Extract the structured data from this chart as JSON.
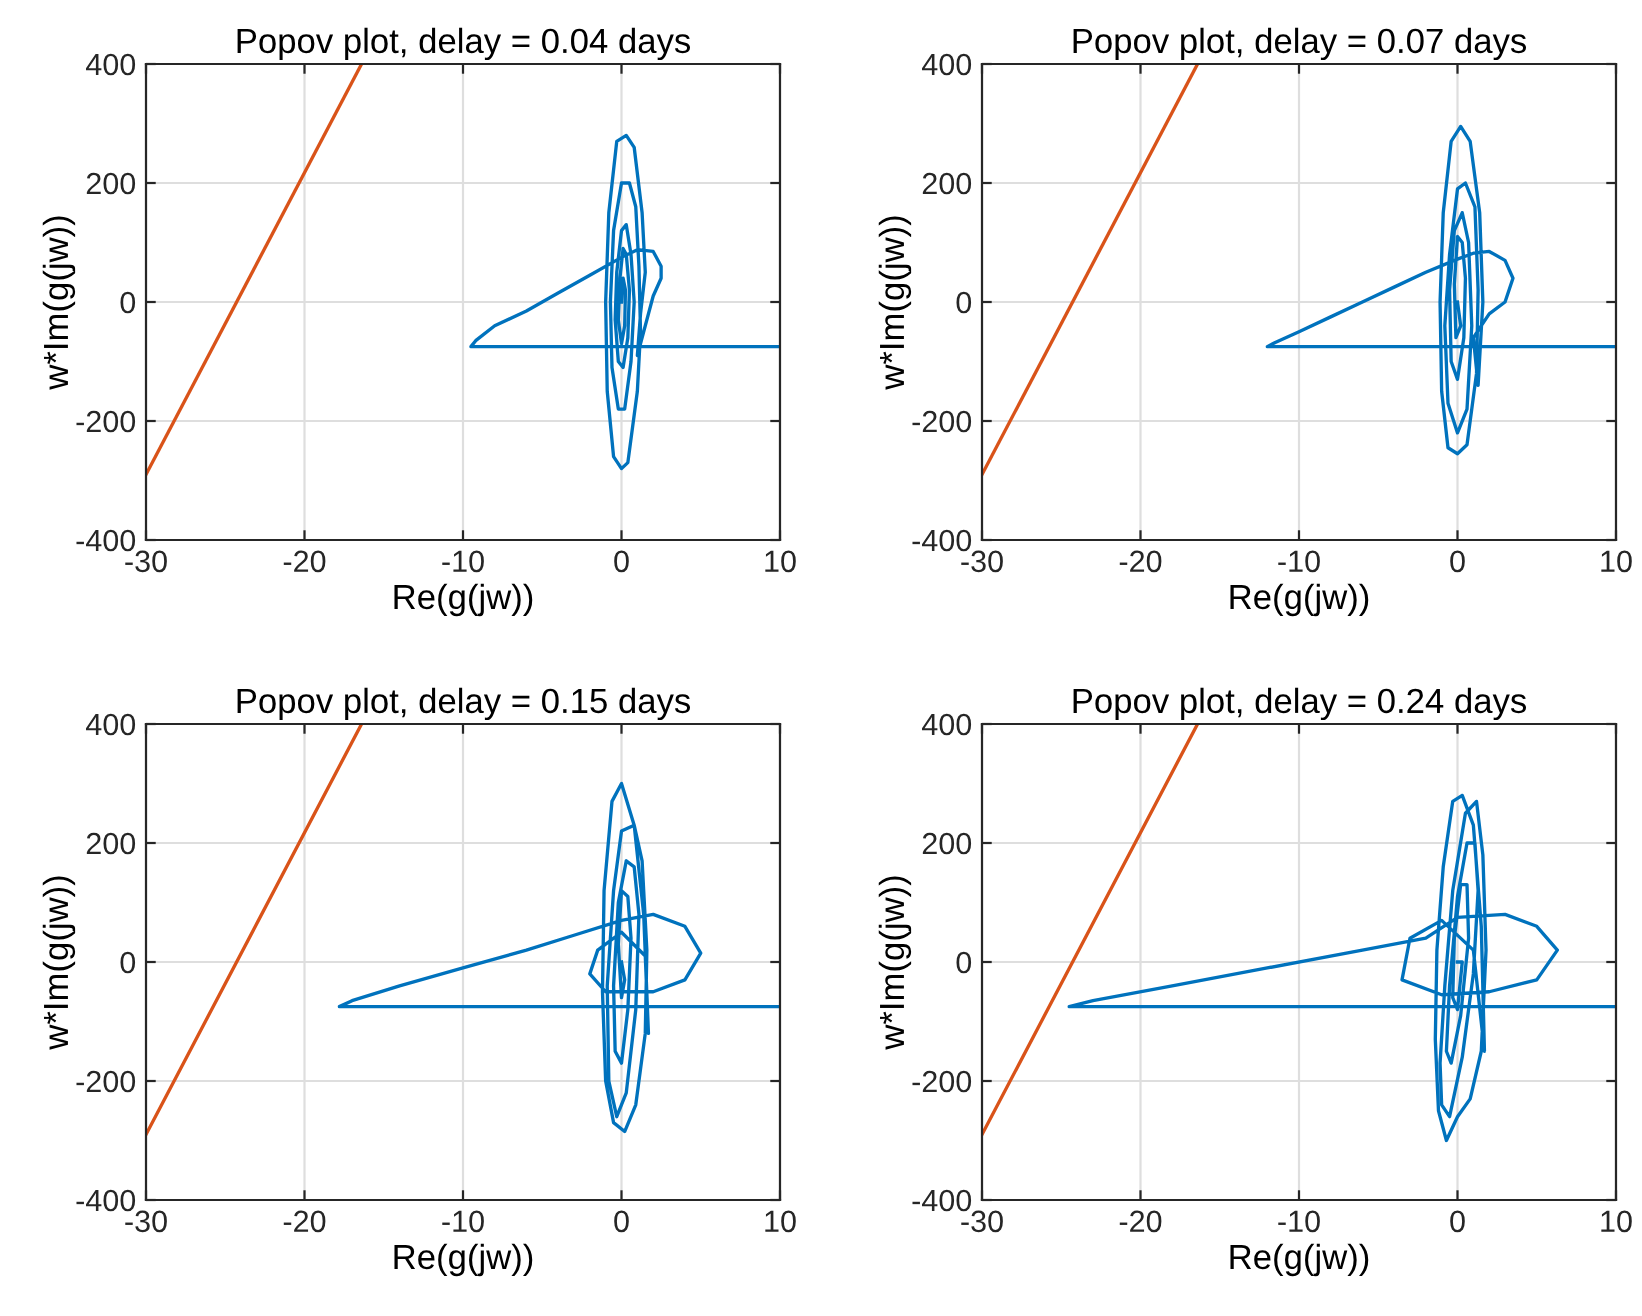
{
  "chart_data": [
    {
      "type": "line",
      "title": "Popov plot, delay = 0.04 days",
      "xlabel": "Re(g(jw))",
      "ylabel": "w*Im(g(jw))",
      "xlim": [
        -30,
        10
      ],
      "ylim": [
        -400,
        400
      ],
      "xticks": [
        -30,
        -20,
        -10,
        0,
        10
      ],
      "yticks": [
        -400,
        -200,
        0,
        200,
        400
      ],
      "grid": true,
      "legend": false,
      "series": [
        {
          "color": "#d95319",
          "x": [
            -30,
            -16.4
          ],
          "values": [
            -290,
            400
          ]
        },
        {
          "color": "#0072bd",
          "x": [
            10,
            -9.5,
            -9.2,
            -8,
            -6,
            -4,
            -2,
            0,
            1,
            2,
            2.5,
            2.5,
            2,
            1.5,
            1,
            1.2,
            1.5,
            1.3,
            0.8,
            0.3,
            -0.3,
            -0.8,
            -1,
            -0.9,
            -0.5,
            0,
            0.4,
            1,
            1.2,
            1.1,
            0.9,
            0.5,
            0,
            -0.5,
            -0.7,
            -0.6,
            -0.2,
            0.2,
            0.6,
            0.8,
            0.6,
            0.3,
            0,
            -0.3,
            -0.4,
            -0.2,
            0.1,
            0.4,
            0.5,
            0.3,
            0.1,
            -0.1,
            -0.2,
            0,
            0.2,
            0.25,
            0.1,
            0
          ],
          "values": [
            -75,
            -75,
            -65,
            -40,
            -15,
            15,
            45,
            75,
            88,
            85,
            60,
            40,
            10,
            -40,
            -90,
            -20,
            50,
            150,
            260,
            280,
            270,
            150,
            0,
            -150,
            -260,
            -280,
            -270,
            -150,
            -50,
            60,
            160,
            200,
            200,
            120,
            0,
            -110,
            -180,
            -180,
            -100,
            0,
            80,
            130,
            120,
            50,
            -30,
            -100,
            -110,
            -60,
            20,
            80,
            90,
            40,
            -30,
            -70,
            -40,
            20,
            40,
            0
          ]
        }
      ]
    },
    {
      "type": "line",
      "title": "Popov plot, delay = 0.07 days",
      "xlabel": "Re(g(jw))",
      "ylabel": "w*Im(g(jw))",
      "xlim": [
        -30,
        10
      ],
      "ylim": [
        -400,
        400
      ],
      "xticks": [
        -30,
        -20,
        -10,
        0,
        10
      ],
      "yticks": [
        -400,
        -200,
        0,
        200,
        400
      ],
      "grid": true,
      "legend": false,
      "series": [
        {
          "color": "#d95319",
          "x": [
            -30,
            -16.4
          ],
          "values": [
            -290,
            400
          ]
        },
        {
          "color": "#0072bd",
          "x": [
            10,
            -12,
            -11.5,
            -10,
            -8,
            -6,
            -4,
            -2,
            0,
            1,
            2,
            3,
            3.5,
            3,
            2,
            1,
            1.3,
            1.6,
            1.4,
            0.8,
            0.2,
            -0.4,
            -0.9,
            -1.1,
            -1,
            -0.6,
            0,
            0.6,
            1.2,
            1.3,
            1.1,
            0.5,
            0,
            -0.5,
            -0.8,
            -0.6,
            0,
            0.6,
            0.9,
            0.7,
            0.3,
            -0.2,
            -0.5,
            -0.4,
            0,
            0.4,
            0.5,
            0.3,
            0,
            -0.2,
            -0.1,
            0.2,
            0
          ],
          "values": [
            -75,
            -75,
            -68,
            -50,
            -25,
            0,
            25,
            50,
            72,
            82,
            85,
            70,
            40,
            0,
            -20,
            -60,
            -140,
            0,
            150,
            270,
            295,
            270,
            150,
            0,
            -150,
            -245,
            -255,
            -240,
            -120,
            20,
            160,
            200,
            190,
            80,
            -40,
            -170,
            -220,
            -180,
            -40,
            100,
            150,
            120,
            20,
            -100,
            -130,
            -60,
            40,
            100,
            110,
            30,
            -60,
            -40,
            0
          ]
        }
      ]
    },
    {
      "type": "line",
      "title": "Popov plot, delay = 0.15 days",
      "xlabel": "Re(g(jw))",
      "ylabel": "w*Im(g(jw))",
      "xlim": [
        -30,
        10
      ],
      "ylim": [
        -400,
        400
      ],
      "xticks": [
        -30,
        -20,
        -10,
        0,
        10
      ],
      "yticks": [
        -400,
        -200,
        0,
        200,
        400
      ],
      "grid": true,
      "legend": false,
      "series": [
        {
          "color": "#d95319",
          "x": [
            -30,
            -16.4
          ],
          "values": [
            -290,
            400
          ]
        },
        {
          "color": "#0072bd",
          "x": [
            10,
            -17.8,
            -17,
            -14,
            -10,
            -6,
            -3,
            0,
            2,
            4,
            5,
            4,
            2,
            -1,
            -2,
            -1.5,
            0,
            1.5,
            1.7,
            1.4,
            0.8,
            0,
            -0.6,
            -1.1,
            -1.2,
            -1,
            -0.5,
            0.2,
            0.9,
            1.5,
            1.6,
            1.3,
            0.8,
            0,
            -0.5,
            -0.9,
            -0.8,
            -0.3,
            0.3,
            0.9,
            1.1,
            0.8,
            0.3,
            -0.2,
            -0.5,
            -0.4,
            0,
            0.4,
            0.6,
            0.4,
            0,
            -0.2,
            0,
            0.2,
            0
          ],
          "values": [
            -75,
            -75,
            -65,
            -40,
            -10,
            20,
            45,
            70,
            80,
            60,
            15,
            -30,
            -50,
            -50,
            -20,
            20,
            50,
            10,
            -120,
            80,
            230,
            300,
            270,
            120,
            -50,
            -200,
            -270,
            -285,
            -240,
            -120,
            20,
            170,
            230,
            220,
            120,
            -40,
            -200,
            -260,
            -220,
            -80,
            80,
            160,
            170,
            100,
            -40,
            -150,
            -170,
            -80,
            40,
            110,
            120,
            30,
            -60,
            -30,
            0
          ]
        }
      ]
    },
    {
      "type": "line",
      "title": "Popov plot, delay = 0.24 days",
      "xlabel": "Re(g(jw))",
      "ylabel": "w*Im(g(jw))",
      "xlim": [
        -30,
        10
      ],
      "ylim": [
        -400,
        400
      ],
      "xticks": [
        -30,
        -20,
        -10,
        0,
        10
      ],
      "yticks": [
        -400,
        -200,
        0,
        200,
        400
      ],
      "grid": true,
      "legend": false,
      "series": [
        {
          "color": "#d95319",
          "x": [
            -30,
            -16.4
          ],
          "values": [
            -290,
            400
          ]
        },
        {
          "color": "#0072bd",
          "x": [
            10,
            -24.5,
            -23,
            -18,
            -12,
            -6,
            -2,
            0,
            3,
            5,
            6.3,
            5,
            2,
            -1,
            -3.5,
            -3,
            -1,
            1,
            1.7,
            1.5,
            1,
            0.3,
            -0.3,
            -0.9,
            -1.3,
            -1.4,
            -1.2,
            -0.7,
            0,
            0.8,
            1.5,
            1.8,
            1.6,
            1.2,
            0.5,
            -0.3,
            -0.8,
            -1.1,
            -1,
            -0.5,
            0.3,
            1,
            1.3,
            1.1,
            0.6,
            0,
            -0.5,
            -0.7,
            -0.4,
            0.2,
            0.7,
            0.6,
            0.2,
            -0.2,
            -0.3,
            0,
            0.3,
            0
          ],
          "values": [
            -75,
            -75,
            -65,
            -40,
            -10,
            20,
            40,
            75,
            80,
            60,
            20,
            -30,
            -50,
            -55,
            -30,
            40,
            70,
            20,
            -150,
            60,
            230,
            280,
            270,
            160,
            20,
            -130,
            -250,
            -300,
            -260,
            -230,
            -150,
            20,
            180,
            270,
            250,
            120,
            -40,
            -170,
            -240,
            -260,
            -160,
            -20,
            120,
            200,
            200,
            110,
            -40,
            -150,
            -170,
            -90,
            40,
            130,
            130,
            40,
            -60,
            -80,
            0,
            0
          ]
        }
      ]
    }
  ]
}
